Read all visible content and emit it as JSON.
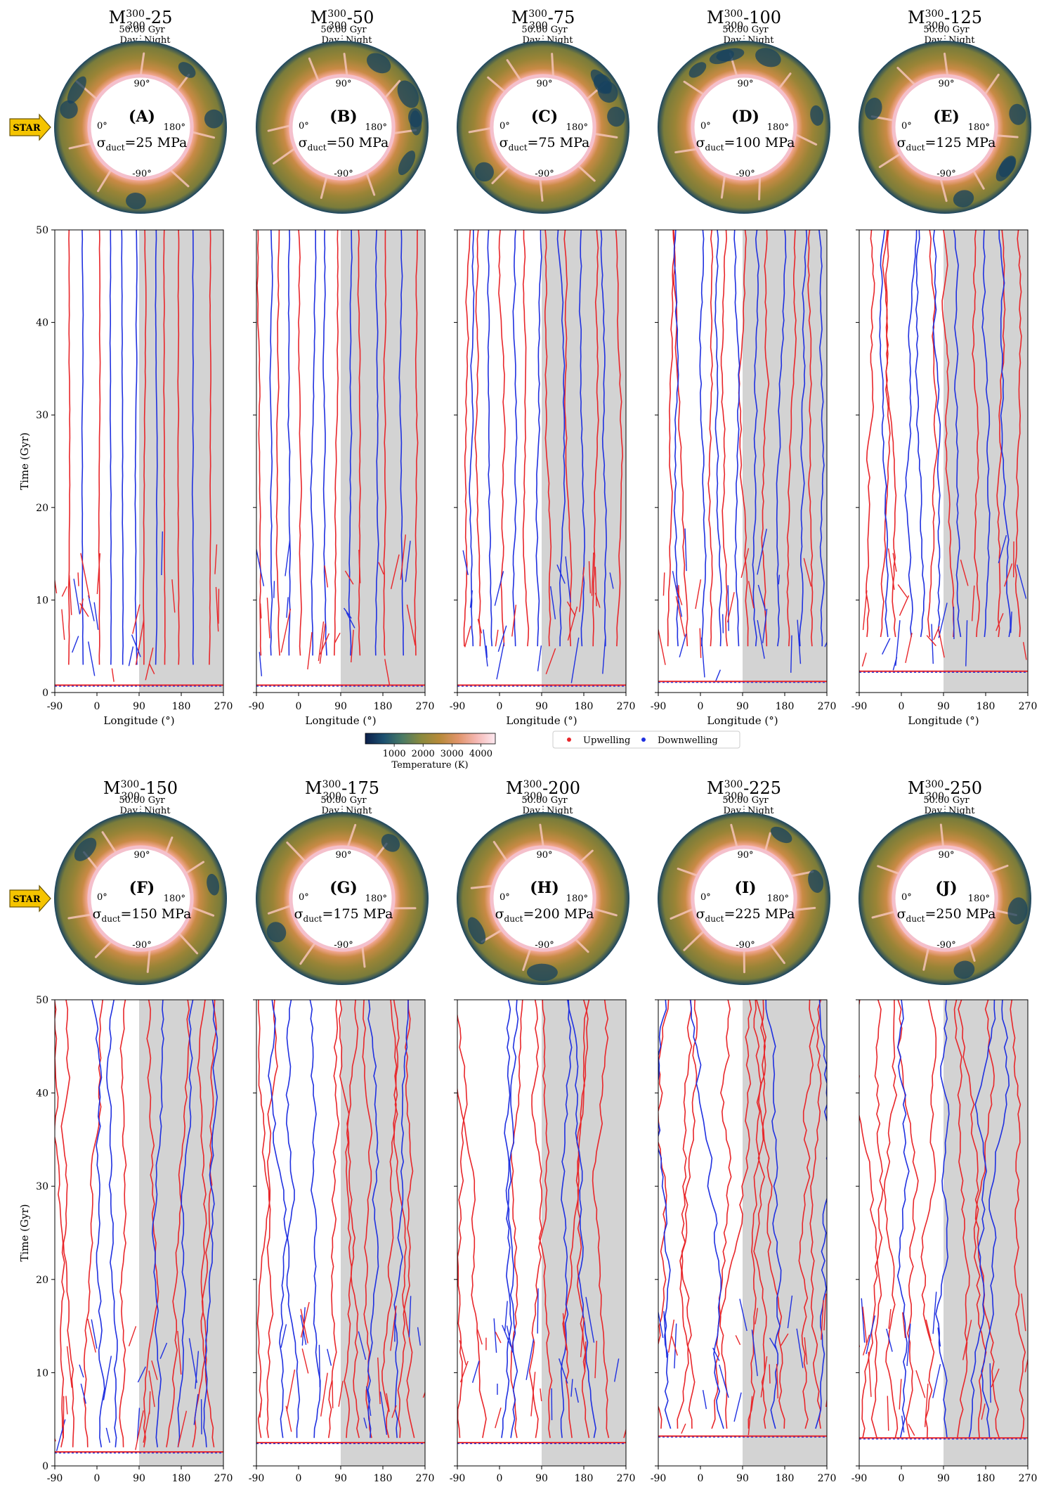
{
  "figure": {
    "star_label": "STAR",
    "colorbar": {
      "label": "Temperature (K)",
      "ticks": [
        "1000",
        "2000",
        "3000",
        "4000"
      ],
      "range": [
        0,
        4500
      ],
      "colors": [
        "#0c1f4a",
        "#1c5170",
        "#4a7a64",
        "#8a8a3e",
        "#b78a3a",
        "#e0946a",
        "#f5b8b4",
        "#fde8f0"
      ]
    },
    "legend": [
      {
        "label": "Upwelling",
        "color": "#e8262a"
      },
      {
        "label": "Downwelling",
        "color": "#1f30e0"
      }
    ],
    "colors": {
      "upwelling": "#e8262a",
      "downwelling": "#1f30e0",
      "night_shade": "#d3d3d3"
    }
  },
  "chart_data": [
    {
      "type": "scatter",
      "id": "A",
      "title_base": "M",
      "title_sup": "300",
      "title_sub": "300",
      "title_suffix": "-25",
      "time_label": "50.00 Gyr",
      "day_label": "Day",
      "night_label": "Night",
      "letter": "(A)",
      "sigma_value": "=25 MPa",
      "sigma_sub": "duct",
      "deg_labels": {
        "top": "90°",
        "left": "0°",
        "right": "180°",
        "bottom": "-90°"
      },
      "xlabel": "Longitude (°)",
      "ylabel": "Time (Gyr)",
      "xlim": [
        -90,
        270
      ],
      "ylim": [
        0,
        50
      ],
      "xticks": [
        "-90",
        "0",
        "90",
        "180",
        "270"
      ],
      "yticks": [
        "0",
        "10",
        "20",
        "30",
        "40",
        "50"
      ],
      "night_band": [
        90,
        270
      ],
      "onset_time": 0.8,
      "upwelling_longitudes": [
        -60,
        5,
        100,
        145,
        175,
        240
      ],
      "downwelling_longitudes": [
        -30,
        30,
        55,
        85,
        125,
        205
      ],
      "trace_start": 3,
      "drift_scale": 4
    },
    {
      "type": "scatter",
      "id": "B",
      "title_base": "M",
      "title_sup": "300",
      "title_sub": "300",
      "title_suffix": "-50",
      "time_label": "50.00 Gyr",
      "day_label": "Day",
      "night_label": "Night",
      "letter": "(B)",
      "sigma_value": "=50 MPa",
      "sigma_sub": "duct",
      "deg_labels": {
        "top": "90°",
        "left": "0°",
        "right": "180°",
        "bottom": "-90°"
      },
      "xlabel": "Longitude (°)",
      "ylabel": "",
      "xlim": [
        -90,
        270
      ],
      "ylim": [
        0,
        50
      ],
      "xticks": [
        "-90",
        "0",
        "90",
        "180",
        "270"
      ],
      "yticks": [],
      "night_band": [
        90,
        270
      ],
      "onset_time": 0.8,
      "upwelling_longitudes": [
        -80,
        -40,
        5,
        75,
        130,
        185,
        250
      ],
      "downwelling_longitudes": [
        -60,
        -20,
        30,
        60,
        110,
        165,
        225
      ],
      "trace_start": 4,
      "drift_scale": 8
    },
    {
      "type": "scatter",
      "id": "C",
      "title_base": "M",
      "title_sup": "300",
      "title_sub": "300",
      "title_suffix": "-75",
      "time_label": "50.00 Gyr",
      "day_label": "Day",
      "night_label": "Night",
      "letter": "(C)",
      "sigma_value": "=75 MPa",
      "sigma_sub": "duct",
      "deg_labels": {
        "top": "90°",
        "left": "0°",
        "right": "180°",
        "bottom": "-90°"
      },
      "xlabel": "Longitude (°)",
      "ylabel": "",
      "xlim": [
        -90,
        270
      ],
      "ylim": [
        0,
        50
      ],
      "xticks": [
        "-90",
        "0",
        "90",
        "180",
        "270"
      ],
      "yticks": [],
      "night_band": [
        90,
        270
      ],
      "onset_time": 0.8,
      "upwelling_longitudes": [
        -75,
        -40,
        10,
        60,
        105,
        150,
        200,
        250
      ],
      "downwelling_longitudes": [
        -55,
        -15,
        35,
        80,
        130,
        175,
        225
      ],
      "trace_start": 5,
      "drift_scale": 12
    },
    {
      "type": "scatter",
      "id": "D",
      "title_base": "M",
      "title_sup": "300",
      "title_sub": "300",
      "title_suffix": "-100",
      "time_label": "50.00 Gyr",
      "day_label": "Day",
      "night_label": "Night",
      "letter": "(D)",
      "sigma_value": "=100 MPa",
      "sigma_sub": "duct",
      "deg_labels": {
        "top": "90°",
        "left": "0°",
        "right": "180°",
        "bottom": "-90°"
      },
      "xlabel": "Longitude (°)",
      "ylabel": "",
      "xlim": [
        -90,
        270
      ],
      "ylim": [
        0,
        50
      ],
      "xticks": [
        "-90",
        "0",
        "90",
        "180",
        "270"
      ],
      "yticks": [],
      "night_band": [
        90,
        270
      ],
      "onset_time": 1.2,
      "upwelling_longitudes": [
        -70,
        -30,
        20,
        60,
        100,
        140,
        190,
        240
      ],
      "downwelling_longitudes": [
        -50,
        0,
        40,
        80,
        120,
        165,
        215,
        260
      ],
      "trace_start": 5,
      "drift_scale": 16
    },
    {
      "type": "scatter",
      "id": "E",
      "title_base": "M",
      "title_sup": "300",
      "title_sub": "300",
      "title_suffix": "-125",
      "time_label": "50.00 Gyr",
      "day_label": "Day",
      "night_label": "Night",
      "letter": "(E)",
      "sigma_value": "=125 MPa",
      "sigma_sub": "duct",
      "deg_labels": {
        "top": "90°",
        "left": "0°",
        "right": "180°",
        "bottom": "-90°"
      },
      "xlabel": "Longitude (°)",
      "ylabel": "",
      "xlim": [
        -90,
        270
      ],
      "ylim": [
        0,
        50
      ],
      "xticks": [
        "-90",
        "0",
        "90",
        "180",
        "270"
      ],
      "yticks": [],
      "night_band": [
        90,
        270
      ],
      "onset_time": 2.3,
      "upwelling_longitudes": [
        -75,
        -45,
        -10,
        60,
        110,
        160,
        210,
        250
      ],
      "downwelling_longitudes": [
        -30,
        20,
        40,
        80,
        130,
        180,
        230
      ],
      "trace_start": 6,
      "drift_scale": 20
    },
    {
      "type": "scatter",
      "id": "F",
      "title_base": "M",
      "title_sup": "300",
      "title_sub": "300",
      "title_suffix": "-150",
      "time_label": "50.00 Gyr",
      "day_label": "Day",
      "night_label": "Night",
      "letter": "(F)",
      "sigma_value": "=150 MPa",
      "sigma_sub": "duct",
      "deg_labels": {
        "top": "90°",
        "left": "0°",
        "right": "180°",
        "bottom": "-90°"
      },
      "xlabel": "Longitude (°)",
      "ylabel": "Time (Gyr)",
      "xlim": [
        -90,
        270
      ],
      "ylim": [
        0,
        50
      ],
      "xticks": [
        "-90",
        "0",
        "90",
        "180",
        "270"
      ],
      "yticks": [
        "0",
        "10",
        "20",
        "30",
        "40",
        "50"
      ],
      "night_band": [
        90,
        270
      ],
      "onset_time": 1.5,
      "upwelling_longitudes": [
        -80,
        -50,
        -20,
        60,
        100,
        150,
        200,
        250
      ],
      "downwelling_longitudes": [
        10,
        40,
        130,
        170,
        230
      ],
      "trace_start": 2,
      "drift_scale": 28
    },
    {
      "type": "scatter",
      "id": "G",
      "title_base": "M",
      "title_sup": "300",
      "title_sub": "300",
      "title_suffix": "-175",
      "time_label": "50.00 Gyr",
      "day_label": "Day",
      "night_label": "Night",
      "letter": "(G)",
      "sigma_value": "=175 MPa",
      "sigma_sub": "duct",
      "deg_labels": {
        "top": "90°",
        "left": "0°",
        "right": "180°",
        "bottom": "-90°"
      },
      "xlabel": "Longitude (°)",
      "ylabel": "",
      "xlim": [
        -90,
        270
      ],
      "ylim": [
        0,
        50
      ],
      "xticks": [
        "-90",
        "0",
        "90",
        "180",
        "270"
      ],
      "yticks": [],
      "night_band": [
        90,
        270
      ],
      "onset_time": 2.5,
      "upwelling_longitudes": [
        -85,
        -60,
        60,
        100,
        130,
        160,
        190,
        220,
        250
      ],
      "downwelling_longitudes": [
        -30,
        0,
        30,
        150,
        210
      ],
      "trace_start": 3,
      "drift_scale": 30
    },
    {
      "type": "scatter",
      "id": "H",
      "title_base": "M",
      "title_sup": "300",
      "title_sub": "300",
      "title_suffix": "-200",
      "time_label": "50.00 Gyr",
      "day_label": "Day",
      "night_label": "Night",
      "letter": "(H)",
      "sigma_value": "=200 MPa",
      "sigma_sub": "duct",
      "deg_labels": {
        "top": "90°",
        "left": "0°",
        "right": "180°",
        "bottom": "-90°"
      },
      "xlabel": "Longitude (°)",
      "ylabel": "",
      "xlim": [
        -90,
        270
      ],
      "ylim": [
        0,
        50
      ],
      "xticks": [
        "-90",
        "0",
        "90",
        "180",
        "270"
      ],
      "yticks": [],
      "night_band": [
        90,
        270
      ],
      "onset_time": 2.5,
      "upwelling_longitudes": [
        -80,
        -40,
        40,
        80,
        110,
        150,
        190,
        230,
        260
      ],
      "downwelling_longitudes": [
        0,
        20,
        130,
        200
      ],
      "trace_start": 3,
      "drift_scale": 32
    },
    {
      "type": "scatter",
      "id": "I",
      "title_base": "M",
      "title_sup": "300",
      "title_sub": "300",
      "title_suffix": "-225",
      "time_label": "50.00 Gyr",
      "day_label": "Day",
      "night_label": "Night",
      "letter": "(I)",
      "sigma_value": "=225 MPa",
      "sigma_sub": "duct",
      "deg_labels": {
        "top": "90°",
        "left": "0°",
        "right": "180°",
        "bottom": "-90°"
      },
      "xlabel": "Longitude (°)",
      "ylabel": "",
      "xlim": [
        -90,
        270
      ],
      "ylim": [
        0,
        50
      ],
      "xticks": [
        "-90",
        "0",
        "90",
        "180",
        "270"
      ],
      "yticks": [],
      "night_band": [
        90,
        270
      ],
      "onset_time": 3.2,
      "upwelling_longitudes": [
        -80,
        -50,
        -20,
        20,
        60,
        100,
        140,
        180,
        220,
        255
      ],
      "downwelling_longitudes": [
        -65,
        45,
        160,
        240
      ],
      "trace_start": 4,
      "drift_scale": 40
    },
    {
      "type": "scatter",
      "id": "J",
      "title_base": "M",
      "title_sup": "300",
      "title_sub": "300",
      "title_suffix": "-250",
      "time_label": "50.00 Gyr",
      "day_label": "Day",
      "night_label": "Night",
      "letter": "(J)",
      "sigma_value": "=250 MPa",
      "sigma_sub": "duct",
      "deg_labels": {
        "top": "90°",
        "left": "0°",
        "right": "180°",
        "bottom": "-90°"
      },
      "xlabel": "Longitude (°)",
      "ylabel": "",
      "xlim": [
        -90,
        270
      ],
      "ylim": [
        0,
        50
      ],
      "xticks": [
        "-90",
        "0",
        "90",
        "180",
        "270"
      ],
      "yticks": [],
      "night_band": [
        90,
        270
      ],
      "onset_time": 3.0,
      "upwelling_longitudes": [
        -80,
        -50,
        -20,
        20,
        60,
        120,
        170,
        215,
        255
      ],
      "downwelling_longitudes": [
        0,
        100,
        140,
        190
      ],
      "trace_start": 3,
      "drift_scale": 40
    }
  ]
}
